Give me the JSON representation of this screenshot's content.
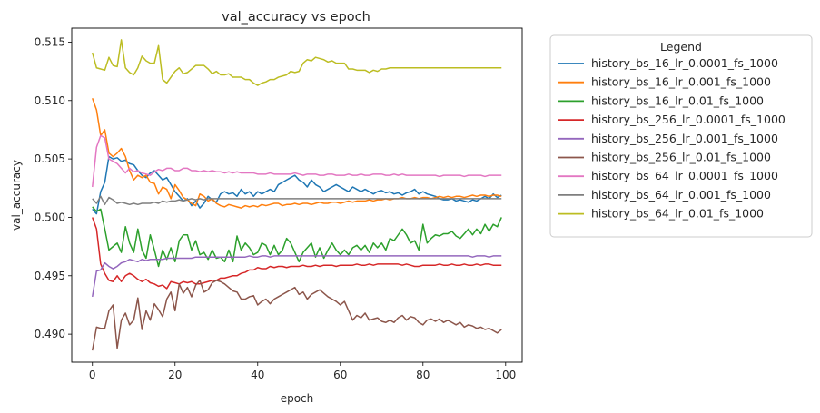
{
  "chart_data": {
    "type": "line",
    "title": "val_accuracy vs epoch",
    "xlabel": "epoch",
    "ylabel": "val_accuracy",
    "xlim": [
      -5,
      104
    ],
    "ylim": [
      0.4876,
      0.5162
    ],
    "xticks": [
      0,
      20,
      40,
      60,
      80,
      100
    ],
    "yticks": [
      0.49,
      0.495,
      0.5,
      0.505,
      0.51,
      0.515
    ],
    "ytick_labels": [
      "0.490",
      "0.495",
      "0.500",
      "0.505",
      "0.510",
      "0.515"
    ],
    "grid": false,
    "legend": {
      "title": "Legend",
      "placement": "outside-right"
    },
    "x": [
      0,
      1,
      2,
      3,
      4,
      5,
      6,
      7,
      8,
      9,
      10,
      11,
      12,
      13,
      14,
      15,
      16,
      17,
      18,
      19,
      20,
      21,
      22,
      23,
      24,
      25,
      26,
      27,
      28,
      29,
      30,
      31,
      32,
      33,
      34,
      35,
      36,
      37,
      38,
      39,
      40,
      41,
      42,
      43,
      44,
      45,
      46,
      47,
      48,
      49,
      50,
      51,
      52,
      53,
      54,
      55,
      56,
      57,
      58,
      59,
      60,
      61,
      62,
      63,
      64,
      65,
      66,
      67,
      68,
      69,
      70,
      71,
      72,
      73,
      74,
      75,
      76,
      77,
      78,
      79,
      80,
      81,
      82,
      83,
      84,
      85,
      86,
      87,
      88,
      89,
      90,
      91,
      92,
      93,
      94,
      95,
      96,
      97,
      98,
      99
    ],
    "series": [
      {
        "name": "history_bs_16_lr_0.0001_fs_1000",
        "color": "#1f77b4",
        "values": [
          0.5007,
          0.5003,
          0.5022,
          0.503,
          0.5052,
          0.505,
          0.5051,
          0.5048,
          0.5049,
          0.5046,
          0.5045,
          0.504,
          0.5036,
          0.5034,
          0.5038,
          0.504,
          0.5036,
          0.5032,
          0.5034,
          0.5028,
          0.5022,
          0.5018,
          0.5014,
          0.5016,
          0.501,
          0.5014,
          0.5008,
          0.5012,
          0.5018,
          0.5015,
          0.5013,
          0.502,
          0.5022,
          0.502,
          0.5021,
          0.5018,
          0.5024,
          0.502,
          0.5022,
          0.5018,
          0.5022,
          0.502,
          0.5022,
          0.5024,
          0.5022,
          0.5028,
          0.503,
          0.5032,
          0.5034,
          0.5036,
          0.5032,
          0.503,
          0.5026,
          0.5032,
          0.5028,
          0.5026,
          0.5022,
          0.5024,
          0.5026,
          0.5028,
          0.5026,
          0.5024,
          0.5022,
          0.5026,
          0.5024,
          0.5022,
          0.5024,
          0.5022,
          0.502,
          0.5022,
          0.5023,
          0.5021,
          0.5022,
          0.502,
          0.5021,
          0.5019,
          0.5021,
          0.5022,
          0.5024,
          0.502,
          0.5022,
          0.502,
          0.5019,
          0.5018,
          0.5016,
          0.5015,
          0.5015,
          0.5016,
          0.5014,
          0.5015,
          0.5014,
          0.5013,
          0.5015,
          0.5014,
          0.5016,
          0.5018,
          0.5016,
          0.502,
          0.5017,
          0.5019
        ]
      },
      {
        "name": "history_bs_16_lr_0.001_fs_1000",
        "color": "#ff7f0e",
        "values": [
          0.5102,
          0.5092,
          0.507,
          0.5075,
          0.5055,
          0.5052,
          0.5055,
          0.5059,
          0.5052,
          0.504,
          0.5032,
          0.5036,
          0.5034,
          0.5036,
          0.503,
          0.5029,
          0.502,
          0.5026,
          0.5024,
          0.5016,
          0.5028,
          0.5023,
          0.5017,
          0.5015,
          0.5012,
          0.501,
          0.502,
          0.5018,
          0.5014,
          0.5016,
          0.5012,
          0.501,
          0.5009,
          0.5011,
          0.501,
          0.5009,
          0.5008,
          0.501,
          0.5009,
          0.501,
          0.5009,
          0.5011,
          0.501,
          0.5011,
          0.5012,
          0.5012,
          0.501,
          0.5011,
          0.5011,
          0.5012,
          0.5011,
          0.5012,
          0.5012,
          0.5011,
          0.5012,
          0.5013,
          0.5012,
          0.5012,
          0.5013,
          0.5013,
          0.5012,
          0.5013,
          0.5014,
          0.5013,
          0.5014,
          0.5014,
          0.5014,
          0.5015,
          0.5014,
          0.5015,
          0.5015,
          0.5016,
          0.5015,
          0.5016,
          0.5016,
          0.5017,
          0.5016,
          0.5016,
          0.5017,
          0.5016,
          0.5017,
          0.5017,
          0.5016,
          0.5017,
          0.5018,
          0.5017,
          0.5018,
          0.5017,
          0.5018,
          0.5018,
          0.5017,
          0.5018,
          0.5019,
          0.5018,
          0.5019,
          0.5019,
          0.5018,
          0.5019,
          0.5019,
          0.5018
        ]
      },
      {
        "name": "history_bs_16_lr_0.01_fs_1000",
        "color": "#2ca02c",
        "values": [
          0.5009,
          0.5005,
          0.5007,
          0.499,
          0.4972,
          0.4975,
          0.4978,
          0.497,
          0.4992,
          0.4978,
          0.497,
          0.499,
          0.4972,
          0.4965,
          0.4985,
          0.4972,
          0.4958,
          0.4972,
          0.4964,
          0.4974,
          0.4962,
          0.498,
          0.4985,
          0.4985,
          0.4972,
          0.498,
          0.4968,
          0.497,
          0.4964,
          0.4972,
          0.4965,
          0.4966,
          0.4962,
          0.4972,
          0.4962,
          0.4984,
          0.4972,
          0.4978,
          0.4974,
          0.4968,
          0.497,
          0.4978,
          0.4976,
          0.4968,
          0.4976,
          0.4968,
          0.4972,
          0.4982,
          0.4978,
          0.497,
          0.4962,
          0.497,
          0.4974,
          0.4978,
          0.4966,
          0.4974,
          0.4965,
          0.4972,
          0.4978,
          0.4972,
          0.4968,
          0.4972,
          0.4968,
          0.4974,
          0.4976,
          0.4972,
          0.4976,
          0.497,
          0.4978,
          0.4974,
          0.4978,
          0.4972,
          0.4982,
          0.498,
          0.4985,
          0.499,
          0.4985,
          0.4978,
          0.498,
          0.4972,
          0.4994,
          0.4978,
          0.4982,
          0.4985,
          0.4984,
          0.4986,
          0.4986,
          0.4988,
          0.4984,
          0.4982,
          0.4986,
          0.499,
          0.4985,
          0.499,
          0.4986,
          0.4994,
          0.4988,
          0.4994,
          0.4992,
          0.5
        ]
      },
      {
        "name": "history_bs_256_lr_0.0001_fs_1000",
        "color": "#d62728",
        "values": [
          0.5,
          0.499,
          0.496,
          0.4952,
          0.4946,
          0.4945,
          0.495,
          0.4945,
          0.495,
          0.4952,
          0.495,
          0.4947,
          0.4945,
          0.4947,
          0.4944,
          0.4943,
          0.4941,
          0.4942,
          0.4939,
          0.4945,
          0.4944,
          0.4943,
          0.4945,
          0.4944,
          0.4945,
          0.4943,
          0.4943,
          0.4944,
          0.4945,
          0.4946,
          0.4946,
          0.4948,
          0.4948,
          0.4949,
          0.495,
          0.495,
          0.4952,
          0.4953,
          0.4955,
          0.4955,
          0.4957,
          0.4956,
          0.4956,
          0.4958,
          0.4957,
          0.4958,
          0.4958,
          0.4957,
          0.4958,
          0.4958,
          0.4958,
          0.4959,
          0.4958,
          0.4958,
          0.4959,
          0.4958,
          0.4959,
          0.4959,
          0.4959,
          0.4958,
          0.4959,
          0.4959,
          0.4959,
          0.4959,
          0.496,
          0.4959,
          0.4959,
          0.496,
          0.4959,
          0.496,
          0.496,
          0.496,
          0.496,
          0.496,
          0.496,
          0.4959,
          0.496,
          0.4959,
          0.4958,
          0.4958,
          0.4959,
          0.4959,
          0.4959,
          0.4959,
          0.496,
          0.4959,
          0.4959,
          0.496,
          0.4959,
          0.4959,
          0.496,
          0.4959,
          0.4959,
          0.496,
          0.4959,
          0.496,
          0.496,
          0.4959,
          0.4959,
          0.4959
        ]
      },
      {
        "name": "history_bs_256_lr_0.001_fs_1000",
        "color": "#9467bd",
        "values": [
          0.4932,
          0.4954,
          0.4955,
          0.4961,
          0.4958,
          0.4956,
          0.4958,
          0.4961,
          0.4962,
          0.4964,
          0.4963,
          0.4962,
          0.4964,
          0.4963,
          0.4964,
          0.4964,
          0.4964,
          0.4964,
          0.4965,
          0.4965,
          0.4965,
          0.4965,
          0.4965,
          0.4965,
          0.4965,
          0.4966,
          0.4966,
          0.4966,
          0.4966,
          0.4966,
          0.4966,
          0.4966,
          0.4966,
          0.4966,
          0.4966,
          0.4966,
          0.4966,
          0.4966,
          0.4967,
          0.4966,
          0.4966,
          0.4967,
          0.4967,
          0.4966,
          0.4967,
          0.4967,
          0.4967,
          0.4967,
          0.4967,
          0.4967,
          0.4967,
          0.4967,
          0.4967,
          0.4967,
          0.4967,
          0.4967,
          0.4967,
          0.4967,
          0.4967,
          0.4967,
          0.4967,
          0.4967,
          0.4967,
          0.4967,
          0.4967,
          0.4967,
          0.4967,
          0.4967,
          0.4967,
          0.4967,
          0.4967,
          0.4967,
          0.4967,
          0.4967,
          0.4967,
          0.4967,
          0.4967,
          0.4967,
          0.4967,
          0.4967,
          0.4967,
          0.4967,
          0.4967,
          0.4967,
          0.4967,
          0.4967,
          0.4967,
          0.4967,
          0.4967,
          0.4967,
          0.4967,
          0.4967,
          0.4966,
          0.4967,
          0.4967,
          0.4967,
          0.4966,
          0.4967,
          0.4967,
          0.4967
        ]
      },
      {
        "name": "history_bs_256_lr_0.01_fs_1000",
        "color": "#8c564b",
        "values": [
          0.4886,
          0.4906,
          0.4905,
          0.4905,
          0.492,
          0.4925,
          0.4888,
          0.4912,
          0.4918,
          0.4908,
          0.4912,
          0.4931,
          0.4904,
          0.492,
          0.4912,
          0.4926,
          0.4921,
          0.4915,
          0.493,
          0.4936,
          0.492,
          0.4943,
          0.4935,
          0.494,
          0.4932,
          0.4942,
          0.4946,
          0.4936,
          0.4938,
          0.4944,
          0.4946,
          0.4945,
          0.4943,
          0.494,
          0.4937,
          0.4936,
          0.493,
          0.493,
          0.4932,
          0.4933,
          0.4925,
          0.4928,
          0.493,
          0.4926,
          0.493,
          0.4932,
          0.4934,
          0.4936,
          0.4938,
          0.494,
          0.4934,
          0.4936,
          0.493,
          0.4934,
          0.4936,
          0.4938,
          0.4935,
          0.4932,
          0.493,
          0.4928,
          0.4925,
          0.4928,
          0.492,
          0.4912,
          0.4916,
          0.4914,
          0.4918,
          0.4912,
          0.4913,
          0.4914,
          0.4911,
          0.491,
          0.4912,
          0.491,
          0.4914,
          0.4916,
          0.4912,
          0.4915,
          0.4914,
          0.491,
          0.4908,
          0.4912,
          0.4913,
          0.4911,
          0.4913,
          0.491,
          0.4912,
          0.491,
          0.4908,
          0.491,
          0.4906,
          0.4908,
          0.4907,
          0.4905,
          0.4906,
          0.4904,
          0.4905,
          0.4903,
          0.4901,
          0.4904
        ]
      },
      {
        "name": "history_bs_64_lr_0.0001_fs_1000",
        "color": "#e377c2",
        "values": [
          0.5026,
          0.506,
          0.507,
          0.5068,
          0.505,
          0.5048,
          0.5046,
          0.5042,
          0.5038,
          0.5042,
          0.5039,
          0.504,
          0.5038,
          0.5037,
          0.5036,
          0.5039,
          0.5041,
          0.504,
          0.5042,
          0.5042,
          0.504,
          0.504,
          0.5042,
          0.5042,
          0.504,
          0.504,
          0.5039,
          0.504,
          0.5039,
          0.504,
          0.5039,
          0.5039,
          0.5038,
          0.5039,
          0.5038,
          0.5039,
          0.5038,
          0.5038,
          0.5038,
          0.5038,
          0.5037,
          0.5037,
          0.5037,
          0.5038,
          0.5037,
          0.5037,
          0.5037,
          0.5037,
          0.5037,
          0.5038,
          0.5037,
          0.5036,
          0.5037,
          0.5037,
          0.5037,
          0.5036,
          0.5036,
          0.5037,
          0.5037,
          0.5036,
          0.5036,
          0.5036,
          0.5037,
          0.5036,
          0.5036,
          0.5037,
          0.5036,
          0.5036,
          0.5037,
          0.5037,
          0.5037,
          0.5036,
          0.5036,
          0.5037,
          0.5036,
          0.5037,
          0.5036,
          0.5036,
          0.5036,
          0.5036,
          0.5036,
          0.5036,
          0.5036,
          0.5036,
          0.5035,
          0.5036,
          0.5036,
          0.5036,
          0.5036,
          0.5036,
          0.5035,
          0.5036,
          0.5036,
          0.5036,
          0.5036,
          0.5035,
          0.5036,
          0.5036,
          0.5036,
          0.5036
        ]
      },
      {
        "name": "history_bs_64_lr_0.001_fs_1000",
        "color": "#7f7f7f",
        "values": [
          0.5016,
          0.5012,
          0.5018,
          0.5011,
          0.5017,
          0.5015,
          0.5012,
          0.5013,
          0.5012,
          0.5011,
          0.5012,
          0.5011,
          0.5012,
          0.5012,
          0.5012,
          0.5013,
          0.5012,
          0.5014,
          0.5013,
          0.5014,
          0.5014,
          0.5015,
          0.5014,
          0.5015,
          0.5016,
          0.5015,
          0.5016,
          0.5015,
          0.5016,
          0.5016,
          0.5016,
          0.5016,
          0.5016,
          0.5016,
          0.5016,
          0.5016,
          0.5016,
          0.5016,
          0.5016,
          0.5016,
          0.5016,
          0.5016,
          0.5016,
          0.5016,
          0.5016,
          0.5016,
          0.5016,
          0.5016,
          0.5016,
          0.5016,
          0.5016,
          0.5016,
          0.5016,
          0.5016,
          0.5016,
          0.5016,
          0.5016,
          0.5016,
          0.5016,
          0.5016,
          0.5016,
          0.5016,
          0.5016,
          0.5016,
          0.5016,
          0.5016,
          0.5016,
          0.5016,
          0.5016,
          0.5016,
          0.5016,
          0.5016,
          0.5016,
          0.5016,
          0.5016,
          0.5016,
          0.5016,
          0.5016,
          0.5016,
          0.5016,
          0.5016,
          0.5016,
          0.5016,
          0.5016,
          0.5016,
          0.5016,
          0.5016,
          0.5016,
          0.5016,
          0.5016,
          0.5016,
          0.5016,
          0.5016,
          0.5016,
          0.5016,
          0.5016,
          0.5016,
          0.5016,
          0.5016,
          0.5016
        ]
      },
      {
        "name": "history_bs_64_lr_0.01_fs_1000",
        "color": "#bcbd22",
        "values": [
          0.5141,
          0.5128,
          0.5127,
          0.5126,
          0.5137,
          0.513,
          0.5129,
          0.5152,
          0.5128,
          0.5124,
          0.5122,
          0.5128,
          0.5138,
          0.5134,
          0.5132,
          0.5132,
          0.5147,
          0.5118,
          0.5115,
          0.512,
          0.5125,
          0.5128,
          0.5123,
          0.5124,
          0.5127,
          0.513,
          0.513,
          0.513,
          0.5127,
          0.5123,
          0.5125,
          0.5122,
          0.5122,
          0.5123,
          0.512,
          0.512,
          0.512,
          0.5118,
          0.5118,
          0.5115,
          0.5113,
          0.5115,
          0.5116,
          0.5118,
          0.5118,
          0.512,
          0.5121,
          0.5122,
          0.5125,
          0.5124,
          0.5125,
          0.5132,
          0.5135,
          0.5134,
          0.5137,
          0.5136,
          0.5135,
          0.5133,
          0.5134,
          0.5132,
          0.5132,
          0.5132,
          0.5127,
          0.5127,
          0.5126,
          0.5126,
          0.5126,
          0.5124,
          0.5126,
          0.5125,
          0.5127,
          0.5127,
          0.5128,
          0.5128,
          0.5128,
          0.5128,
          0.5128,
          0.5128,
          0.5128,
          0.5128,
          0.5128,
          0.5128,
          0.5128,
          0.5128,
          0.5128,
          0.5128,
          0.5128,
          0.5128,
          0.5128,
          0.5128,
          0.5128,
          0.5128,
          0.5128,
          0.5128,
          0.5128,
          0.5128,
          0.5128,
          0.5128,
          0.5128,
          0.5128
        ]
      }
    ]
  }
}
